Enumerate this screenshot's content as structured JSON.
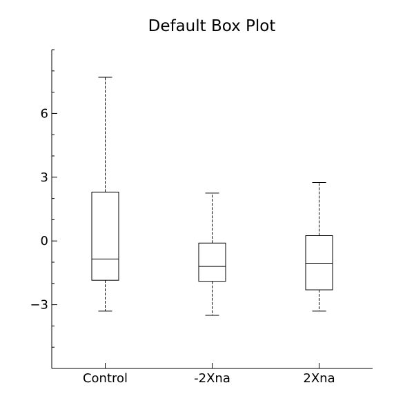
{
  "chart_data": {
    "type": "box",
    "title": "Default Box Plot",
    "xlabel": "",
    "ylabel": "",
    "categories": [
      "Control",
      "-2Xna",
      "2Xna"
    ],
    "boxes": [
      {
        "category": "Control",
        "whisker_low": -3.3,
        "q1": -1.85,
        "median": -0.85,
        "q3": 2.3,
        "whisker_high": 7.7
      },
      {
        "category": "-2Xna",
        "whisker_low": -3.5,
        "q1": -1.9,
        "median": -1.2,
        "q3": -0.1,
        "whisker_high": 2.25
      },
      {
        "category": "2Xna",
        "whisker_low": -3.3,
        "q1": -2.3,
        "median": -1.05,
        "q3": 0.25,
        "whisker_high": 2.75
      }
    ],
    "ylim": [
      -6,
      9
    ],
    "yticks": [
      -3,
      0,
      3,
      6
    ],
    "ytick_labels": [
      "−3",
      "0",
      "3",
      "6"
    ],
    "y_minor_step": 1,
    "grid": false,
    "legend": "none",
    "colors": {
      "box": "#000000",
      "median": "#000000",
      "whisker": "#000000",
      "axis": "#000000",
      "background": "#ffffff"
    }
  }
}
